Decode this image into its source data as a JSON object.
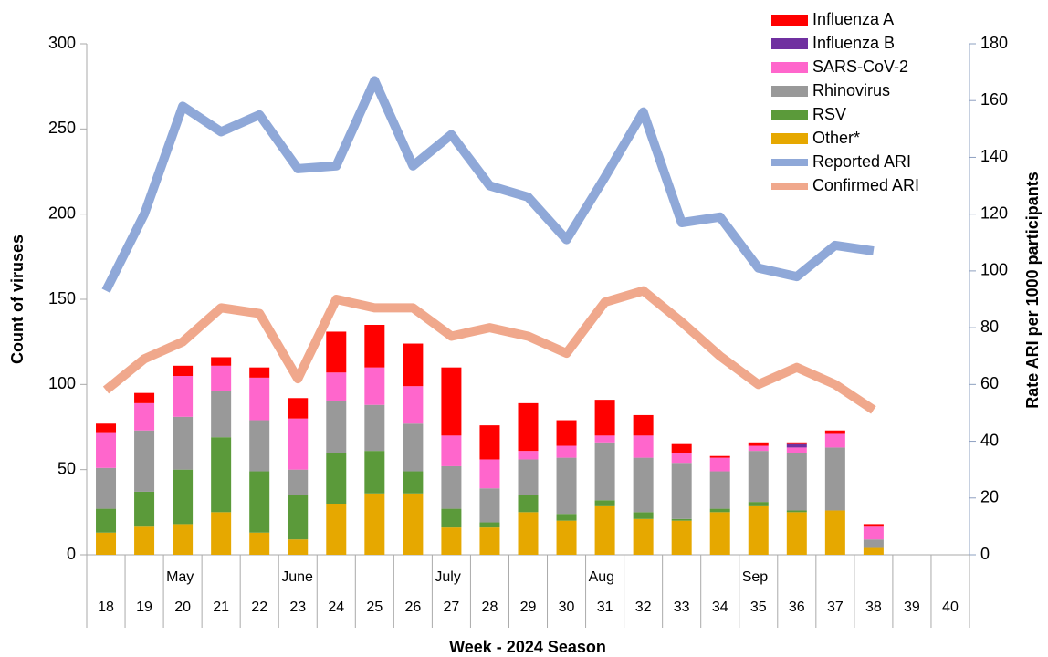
{
  "chart_data": {
    "type": "bar",
    "xlabel": "Week - 2024 Season",
    "ylabel": "Count of viruses",
    "y2label": "Rate ARI  per 1000 participants",
    "categories": [
      "18",
      "19",
      "20",
      "21",
      "22",
      "23",
      "24",
      "25",
      "26",
      "27",
      "28",
      "29",
      "30",
      "31",
      "32",
      "33",
      "34",
      "35",
      "36",
      "37",
      "38",
      "39",
      "40"
    ],
    "month_labels": [
      null,
      null,
      "May",
      null,
      null,
      "June",
      null,
      null,
      null,
      "July",
      null,
      null,
      null,
      "Aug",
      null,
      null,
      null,
      "Sep",
      null,
      null,
      null,
      null,
      null
    ],
    "ylim": [
      0,
      300
    ],
    "yticks": [
      0,
      50,
      100,
      150,
      200,
      250,
      300
    ],
    "y2lim": [
      0,
      180
    ],
    "y2ticks": [
      0,
      20,
      40,
      60,
      80,
      100,
      120,
      140,
      160,
      180
    ],
    "grid": false,
    "legend": "upper right",
    "series": [
      {
        "name": "Influenza A",
        "color": "#ff0000",
        "values": [
          5,
          6,
          6,
          5,
          6,
          12,
          24,
          25,
          25,
          40,
          20,
          28,
          15,
          21,
          12,
          5,
          1,
          2,
          1,
          2,
          1,
          null,
          null
        ]
      },
      {
        "name": "Influenza B",
        "color": "#7030a0",
        "values": [
          0,
          0,
          0,
          0,
          0,
          0,
          0,
          0,
          0,
          0,
          0,
          0,
          0,
          0,
          0,
          0,
          0,
          0,
          2,
          0,
          0,
          null,
          null
        ]
      },
      {
        "name": "SARS-CoV-2",
        "color": "#ff66cc",
        "values": [
          21,
          16,
          24,
          15,
          25,
          30,
          17,
          22,
          22,
          18,
          17,
          5,
          7,
          4,
          13,
          6,
          8,
          3,
          3,
          8,
          8,
          null,
          null
        ]
      },
      {
        "name": "Rhinovirus",
        "color": "#999999",
        "values": [
          24,
          36,
          31,
          27,
          30,
          15,
          30,
          27,
          28,
          25,
          20,
          21,
          33,
          34,
          32,
          33,
          22,
          30,
          34,
          37,
          5,
          null,
          null
        ]
      },
      {
        "name": "RSV",
        "color": "#5b9a3a",
        "values": [
          14,
          20,
          32,
          44,
          36,
          26,
          30,
          25,
          13,
          11,
          3,
          10,
          4,
          3,
          4,
          1,
          2,
          2,
          1,
          0,
          0,
          null,
          null
        ]
      },
      {
        "name": "Other*",
        "color": "#e6a800",
        "values": [
          13,
          17,
          18,
          25,
          13,
          9,
          30,
          36,
          36,
          16,
          16,
          25,
          20,
          29,
          21,
          20,
          25,
          29,
          25,
          26,
          4,
          null,
          null
        ]
      },
      {
        "name": "Reported ARI",
        "type": "line",
        "axis": "y2",
        "color": "#8fa8d8",
        "values": [
          93,
          120,
          158,
          149,
          155,
          136,
          137,
          167,
          137,
          148,
          130,
          126,
          111,
          133,
          156,
          117,
          119,
          101,
          98,
          109,
          107,
          null,
          null
        ]
      },
      {
        "name": "Confirmed ARI",
        "type": "line",
        "axis": "y2",
        "color": "#f0a88c",
        "values": [
          58,
          69,
          75,
          87,
          85,
          62,
          90,
          87,
          87,
          77,
          80,
          77,
          71,
          89,
          93,
          82,
          70,
          60,
          66,
          60,
          51,
          null,
          null
        ]
      }
    ]
  }
}
